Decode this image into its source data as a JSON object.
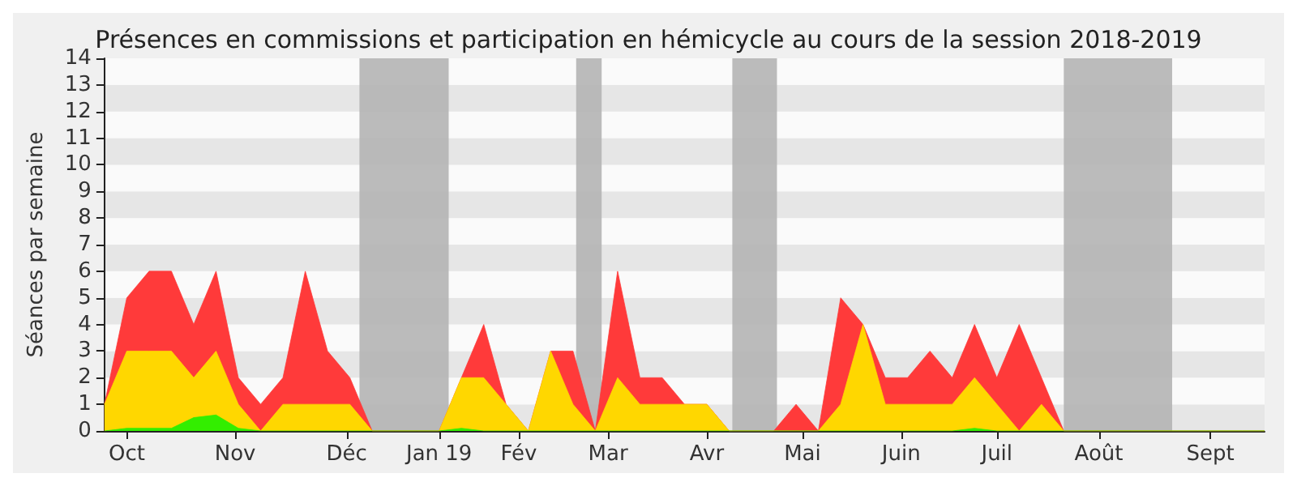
{
  "chart_data": {
    "type": "area",
    "stacked": true,
    "title": "Présences en commissions et participation en hémicycle au cours de la session 2018-2019",
    "ylabel": "Séances par semaine",
    "x": [
      "2018-09-24",
      "2018-10-01",
      "2018-10-08",
      "2018-10-15",
      "2018-10-22",
      "2018-10-29",
      "2018-11-05",
      "2018-11-12",
      "2018-11-19",
      "2018-11-26",
      "2018-12-03",
      "2018-12-10",
      "2018-12-17",
      "2018-12-24",
      "2018-12-31",
      "2019-01-07",
      "2019-01-14",
      "2019-01-21",
      "2019-01-28",
      "2019-02-04",
      "2019-02-11",
      "2019-02-18",
      "2019-02-25",
      "2019-03-04",
      "2019-03-11",
      "2019-03-18",
      "2019-03-25",
      "2019-04-01",
      "2019-04-08",
      "2019-04-15",
      "2019-04-22",
      "2019-04-29",
      "2019-05-06",
      "2019-05-13",
      "2019-05-20",
      "2019-05-27",
      "2019-06-03",
      "2019-06-10",
      "2019-06-17",
      "2019-06-24",
      "2019-07-01",
      "2019-07-08",
      "2019-07-15",
      "2019-07-22",
      "2019-07-29",
      "2019-08-05",
      "2019-08-12",
      "2019-08-19",
      "2019-08-26",
      "2019-09-02",
      "2019-09-09",
      "2019-09-16",
      "2019-09-23"
    ],
    "series": [
      {
        "color": "#33ee00",
        "values": [
          0,
          0.1,
          0.1,
          0.1,
          0.5,
          0.6,
          0.1,
          0,
          0,
          0,
          0,
          0,
          0,
          0,
          0,
          0,
          0.1,
          0,
          0,
          0,
          0,
          0,
          0,
          0,
          0,
          0,
          0,
          0,
          0,
          0,
          0,
          0,
          0,
          0,
          0,
          0,
          0,
          0,
          0,
          0.1,
          0,
          0,
          0,
          0,
          0,
          0,
          0,
          0,
          0,
          0,
          0,
          0,
          0
        ]
      },
      {
        "color": "#ffd700",
        "values": [
          1,
          2.9,
          2.9,
          2.9,
          1.5,
          2.4,
          0.9,
          0,
          1,
          1,
          1,
          1,
          0,
          0,
          0,
          0,
          1.9,
          2,
          1,
          0,
          3,
          1,
          0,
          2,
          1,
          1,
          1,
          1,
          0,
          0,
          0,
          0,
          0,
          1,
          4,
          1,
          1,
          1,
          1,
          1.9,
          1,
          0,
          1,
          0,
          0,
          0,
          0,
          0,
          0,
          0,
          0,
          0,
          0
        ]
      },
      {
        "color": "#ff3a3a",
        "values": [
          0,
          2,
          3,
          3,
          2,
          3,
          1,
          1,
          1,
          5,
          2,
          1,
          0,
          0,
          0,
          0,
          0,
          2,
          0,
          0,
          0,
          2,
          0,
          4,
          1,
          1,
          0,
          0,
          0,
          0,
          0,
          1,
          0,
          4,
          0,
          1,
          1,
          2,
          1,
          2,
          1,
          4,
          1,
          0,
          0,
          0,
          0,
          0,
          0,
          0,
          0,
          0,
          0
        ]
      }
    ],
    "xlim": [
      "2018-09-24",
      "2019-09-23"
    ],
    "xticks": [
      {
        "value": "2018-10-01",
        "label": "Oct"
      },
      {
        "value": "2018-11-04",
        "label": "Nov"
      },
      {
        "value": "2018-12-09",
        "label": "Déc"
      },
      {
        "value": "2019-01-07",
        "label": "Jan 19"
      },
      {
        "value": "2019-02-01",
        "label": "Fév"
      },
      {
        "value": "2019-03-01",
        "label": "Mar"
      },
      {
        "value": "2019-04-01",
        "label": "Avr"
      },
      {
        "value": "2019-05-01",
        "label": "Mai"
      },
      {
        "value": "2019-06-01",
        "label": "Juin"
      },
      {
        "value": "2019-07-01",
        "label": "Juil"
      },
      {
        "value": "2019-08-02",
        "label": "Août"
      },
      {
        "value": "2019-09-06",
        "label": "Sept"
      }
    ],
    "ylim": [
      0,
      14
    ],
    "yticks": [
      0,
      1,
      2,
      3,
      4,
      5,
      6,
      7,
      8,
      9,
      10,
      11,
      12,
      13,
      14
    ],
    "bands": [
      {
        "axis": "x",
        "from": "2018-12-13",
        "to": "2019-01-10",
        "color": "#b4b4b4"
      },
      {
        "axis": "x",
        "from": "2019-02-19",
        "to": "2019-02-27",
        "color": "#b4b4b4"
      },
      {
        "axis": "x",
        "from": "2019-04-09",
        "to": "2019-04-23",
        "color": "#b4b4b4"
      },
      {
        "axis": "x",
        "from": "2019-07-22",
        "to": "2019-08-25",
        "color": "#b4b4b4"
      }
    ]
  }
}
